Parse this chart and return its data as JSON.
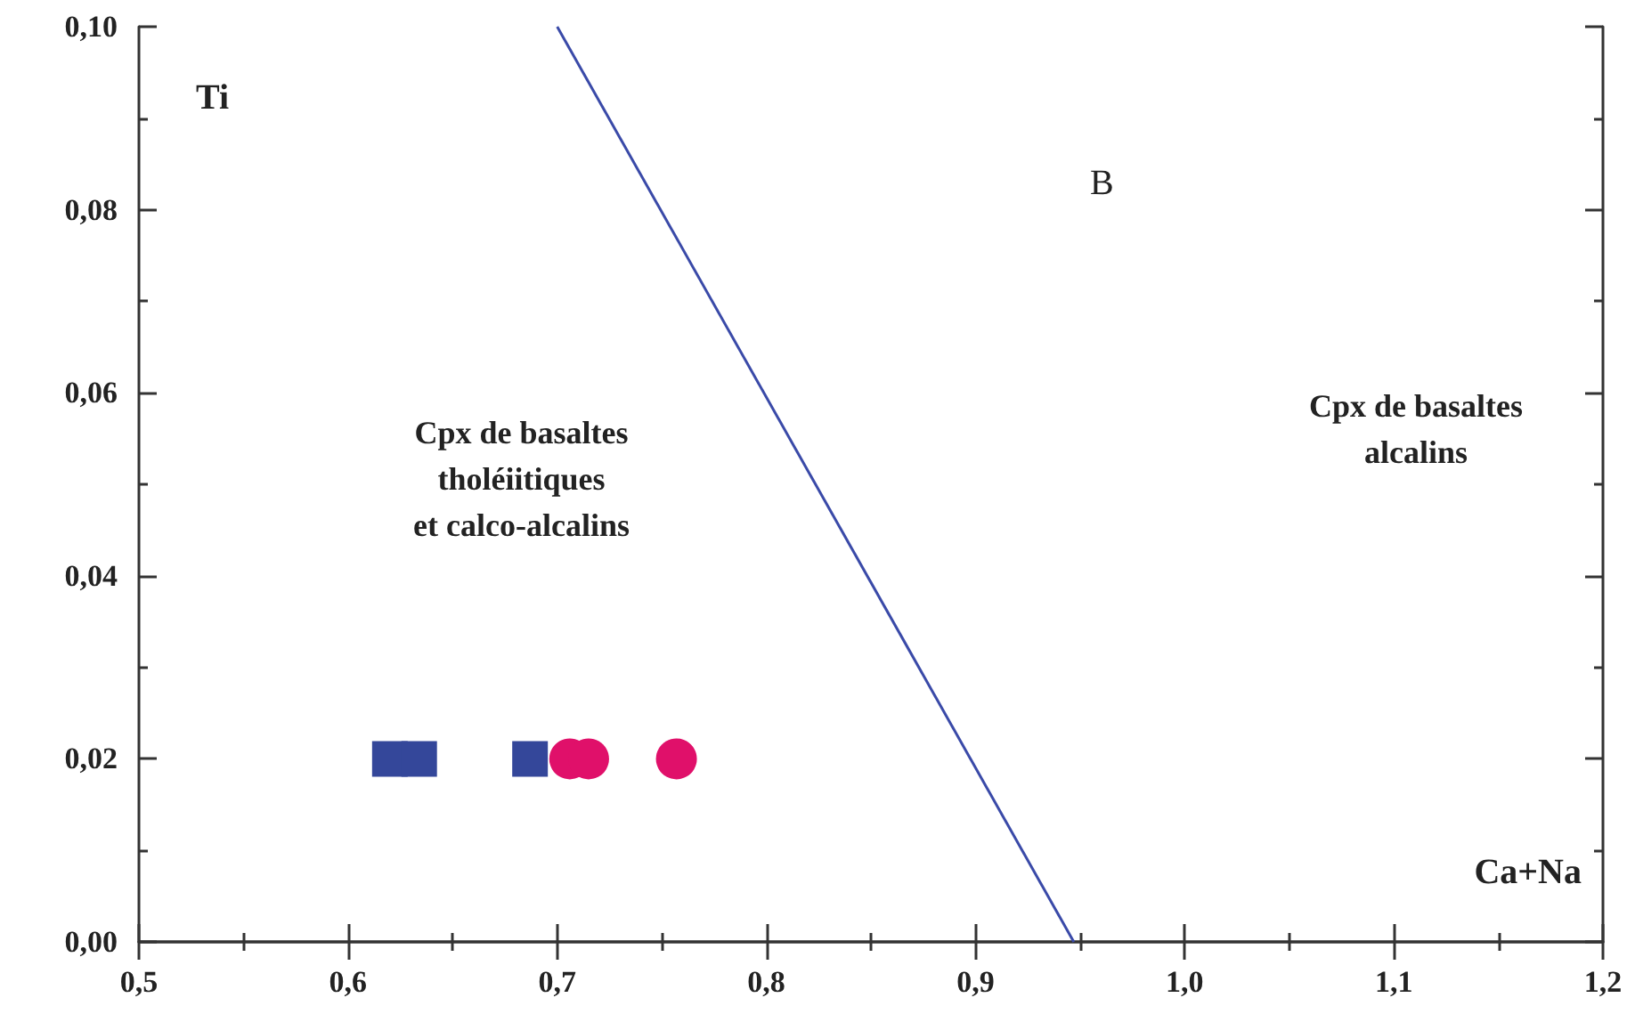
{
  "chart_data": {
    "type": "scatter",
    "xlabel": "Ca+Na",
    "ylabel": "Ti",
    "annotations": [
      "B",
      "Cpx de basaltes\ntholéiitiques\net calco-alcalins",
      "Cpx de basaltes\nalcalins"
    ],
    "xlim": [
      0.5,
      1.2
    ],
    "ylim": [
      0,
      0.1
    ],
    "xticks": [
      {
        "value": 0.5,
        "label": "0,5"
      },
      {
        "value": 0.6,
        "label": "0,6"
      },
      {
        "value": 0.7,
        "label": "0,7"
      },
      {
        "value": 0.8,
        "label": "0,8"
      },
      {
        "value": 0.9,
        "label": "0,9"
      },
      {
        "value": 1.0,
        "label": "1,0"
      },
      {
        "value": 1.1,
        "label": "1,1"
      },
      {
        "value": 1.2,
        "label": "1,2"
      }
    ],
    "yticks": [
      {
        "value": 0,
        "label": "0,00"
      },
      {
        "value": 0.02,
        "label": "0,02"
      },
      {
        "value": 0.04,
        "label": "0,04"
      },
      {
        "value": 0.06,
        "label": "0,06"
      },
      {
        "value": 0.08,
        "label": "0,08"
      },
      {
        "value": 0.1,
        "label": "0,10"
      }
    ],
    "grid": false,
    "series": [
      {
        "marker": "square",
        "color": "#34479a",
        "x": [
          0.62,
          0.634,
          0.687
        ],
        "values": [
          0.02,
          0.02,
          0.02
        ]
      },
      {
        "marker": "circle",
        "color": "#e0106a",
        "x": [
          0.706,
          0.715,
          0.757
        ],
        "values": [
          0.02,
          0.02,
          0.02
        ]
      },
      {
        "type": "line",
        "marker": "none",
        "color": "#3a4aa8",
        "x": [
          0.7,
          0.947
        ],
        "values": [
          0.1,
          0
        ]
      }
    ]
  }
}
